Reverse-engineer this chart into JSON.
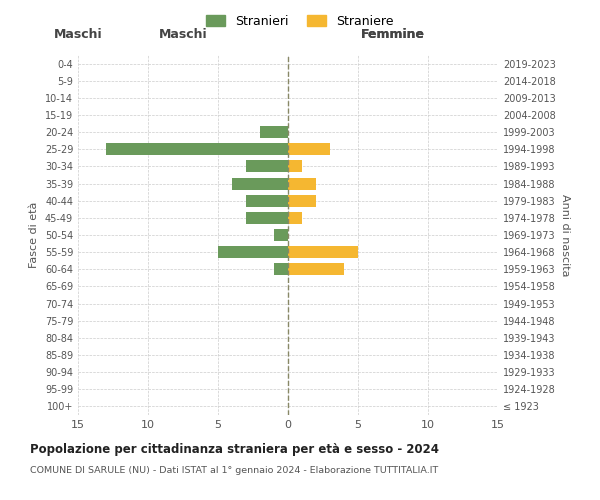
{
  "age_groups": [
    "100+",
    "95-99",
    "90-94",
    "85-89",
    "80-84",
    "75-79",
    "70-74",
    "65-69",
    "60-64",
    "55-59",
    "50-54",
    "45-49",
    "40-44",
    "35-39",
    "30-34",
    "25-29",
    "20-24",
    "15-19",
    "10-14",
    "5-9",
    "0-4"
  ],
  "birth_years": [
    "≤ 1923",
    "1924-1928",
    "1929-1933",
    "1934-1938",
    "1939-1943",
    "1944-1948",
    "1949-1953",
    "1954-1958",
    "1959-1963",
    "1964-1968",
    "1969-1973",
    "1974-1978",
    "1979-1983",
    "1984-1988",
    "1989-1993",
    "1994-1998",
    "1999-2003",
    "2004-2008",
    "2009-2013",
    "2014-2018",
    "2019-2023"
  ],
  "males": [
    0,
    0,
    0,
    0,
    0,
    0,
    0,
    0,
    1,
    5,
    1,
    3,
    3,
    4,
    3,
    13,
    2,
    0,
    0,
    0,
    0
  ],
  "females": [
    0,
    0,
    0,
    0,
    0,
    0,
    0,
    0,
    4,
    5,
    0,
    1,
    2,
    2,
    1,
    3,
    0,
    0,
    0,
    0,
    0
  ],
  "male_color": "#6a9a5b",
  "female_color": "#f5b731",
  "title": "Popolazione per cittadinanza straniera per età e sesso - 2024",
  "subtitle": "COMUNE DI SARULE (NU) - Dati ISTAT al 1° gennaio 2024 - Elaborazione TUTTITALIA.IT",
  "xlabel_left": "Maschi",
  "xlabel_right": "Femmine",
  "ylabel_left": "Fasce di età",
  "ylabel_right": "Anni di nascita",
  "legend_male": "Stranieri",
  "legend_female": "Straniere",
  "xlim": 15,
  "background_color": "#ffffff",
  "grid_color": "#cccccc",
  "bar_height": 0.7
}
